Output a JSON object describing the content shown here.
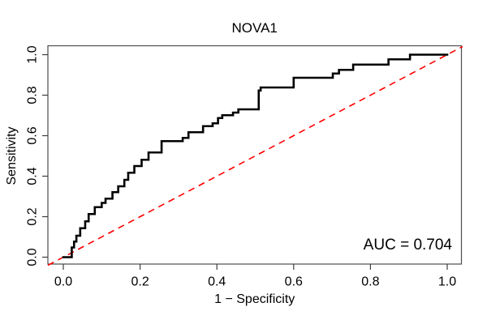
{
  "colors": {
    "background": "#ffffff",
    "roc_curve": "#000000",
    "chance_line": "#ff0000",
    "frame": "#4d4d4d",
    "ticks": "#3d3d3d",
    "text": "#000000"
  },
  "chart_data": {
    "type": "line",
    "subtype": "roc-step-curve",
    "title": "NOVA1",
    "xlabel": "1 − Specificity",
    "ylabel": "Sensitivity",
    "xlim": [
      0,
      1
    ],
    "ylim": [
      0,
      1
    ],
    "grid": false,
    "legend": "none",
    "x_ticks": [
      0.0,
      0.2,
      0.4,
      0.6,
      0.8,
      1.0
    ],
    "x_tick_labels": [
      "0.0",
      "0.2",
      "0.4",
      "0.6",
      "0.8",
      "1.0"
    ],
    "y_ticks": [
      0.0,
      0.2,
      0.4,
      0.6,
      0.8,
      1.0
    ],
    "y_tick_labels": [
      "0.0",
      "0.2",
      "0.4",
      "0.6",
      "0.8",
      "1.0"
    ],
    "auc_annotation": "AUC = 0.704",
    "auc_value": 0.704,
    "series": [
      {
        "name": "ROC curve",
        "color": "#000000",
        "style": "solid",
        "line_width": 2.6,
        "points": [
          [
            0.0,
            0.0
          ],
          [
            0.022,
            0.0
          ],
          [
            0.022,
            0.048
          ],
          [
            0.028,
            0.048
          ],
          [
            0.028,
            0.077
          ],
          [
            0.034,
            0.077
          ],
          [
            0.034,
            0.106
          ],
          [
            0.044,
            0.106
          ],
          [
            0.044,
            0.143
          ],
          [
            0.057,
            0.143
          ],
          [
            0.057,
            0.177
          ],
          [
            0.066,
            0.177
          ],
          [
            0.066,
            0.213
          ],
          [
            0.082,
            0.213
          ],
          [
            0.082,
            0.247
          ],
          [
            0.1,
            0.247
          ],
          [
            0.1,
            0.268
          ],
          [
            0.11,
            0.268
          ],
          [
            0.11,
            0.289
          ],
          [
            0.128,
            0.289
          ],
          [
            0.128,
            0.321
          ],
          [
            0.143,
            0.321
          ],
          [
            0.143,
            0.35
          ],
          [
            0.159,
            0.35
          ],
          [
            0.159,
            0.382
          ],
          [
            0.169,
            0.382
          ],
          [
            0.169,
            0.417
          ],
          [
            0.185,
            0.417
          ],
          [
            0.185,
            0.45
          ],
          [
            0.204,
            0.45
          ],
          [
            0.204,
            0.481
          ],
          [
            0.222,
            0.481
          ],
          [
            0.222,
            0.517
          ],
          [
            0.256,
            0.517
          ],
          [
            0.256,
            0.573
          ],
          [
            0.311,
            0.573
          ],
          [
            0.311,
            0.589
          ],
          [
            0.326,
            0.589
          ],
          [
            0.326,
            0.617
          ],
          [
            0.364,
            0.617
          ],
          [
            0.364,
            0.647
          ],
          [
            0.389,
            0.647
          ],
          [
            0.389,
            0.661
          ],
          [
            0.403,
            0.661
          ],
          [
            0.403,
            0.687
          ],
          [
            0.414,
            0.687
          ],
          [
            0.414,
            0.701
          ],
          [
            0.442,
            0.701
          ],
          [
            0.442,
            0.714
          ],
          [
            0.456,
            0.714
          ],
          [
            0.456,
            0.73
          ],
          [
            0.509,
            0.73
          ],
          [
            0.509,
            0.823
          ],
          [
            0.514,
            0.823
          ],
          [
            0.514,
            0.838
          ],
          [
            0.6,
            0.838
          ],
          [
            0.6,
            0.886
          ],
          [
            0.702,
            0.886
          ],
          [
            0.702,
            0.907
          ],
          [
            0.718,
            0.907
          ],
          [
            0.718,
            0.925
          ],
          [
            0.755,
            0.925
          ],
          [
            0.755,
            0.951
          ],
          [
            0.847,
            0.951
          ],
          [
            0.847,
            0.977
          ],
          [
            0.903,
            0.977
          ],
          [
            0.903,
            1.0
          ],
          [
            1.0,
            1.0
          ]
        ]
      },
      {
        "name": "chance diagonal",
        "color": "#ff0000",
        "style": "dashed",
        "line_width": 1.6,
        "points": [
          [
            -0.04,
            -0.04
          ],
          [
            1.04,
            1.04
          ]
        ]
      }
    ]
  }
}
